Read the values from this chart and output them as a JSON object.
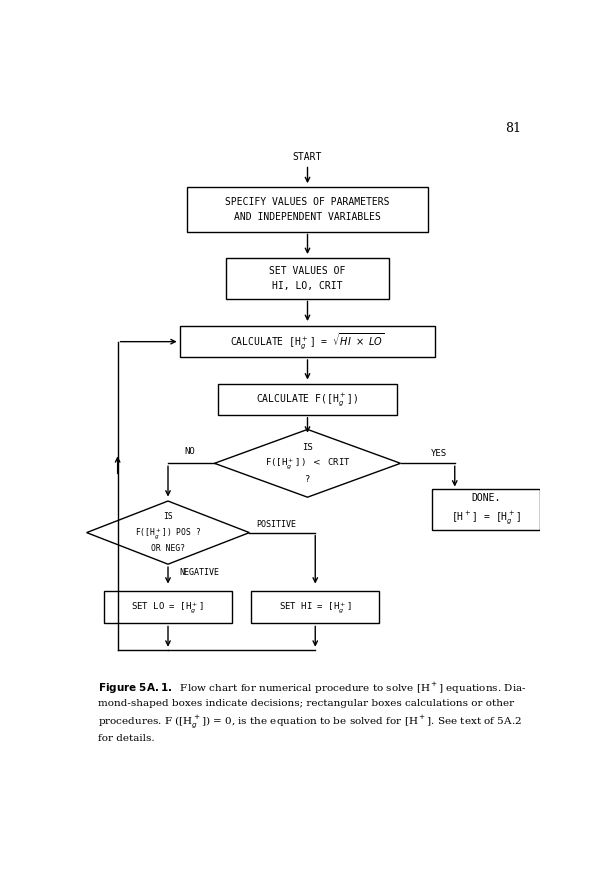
{
  "page_number": "81",
  "bg": "#ffffff",
  "lw": 1.0,
  "mono_fs": 7.0,
  "start_text": "START",
  "box1_text": "SPECIFY VALUES OF PARAMETERS\nAND INDEPENDENT VARIABLES",
  "box2_text": "SET VALUES OF\nHI, LO, CRIT",
  "box3_text": "CALCULATE [H_g^+] = sqrt(HI x LO)",
  "box4_text": "CALCULATE F([H_g^+])",
  "d1_line1": "IS",
  "d1_line2": "F([H_g^+]) < CRIT",
  "d1_line3": "?",
  "box5_line1": "DONE.",
  "box5_line2": "[H^+] = [H_g^+]",
  "d2_line1": "IS",
  "d2_line2": "F([H_g^+])  POS ?",
  "d2_line3": "OR NEG?",
  "box6_text": "SET LO = [H_g^+]",
  "box7_text": "SET HI = [H_g^+]",
  "no_label": "NO",
  "yes_label": "YES",
  "pos_label": "POSITIVE",
  "neg_label": "NEGATIVE",
  "caption_bold": "Figure 5A.1.",
  "caption_rest": "  Flow chart for numerical procedure to solve [H⁺] equations. Diamond-shaped boxes indicate decisions; rectangular boxes calculations or other procedures. F ([H⁺ₑ]) = 0, is the equation to be solved for [H⁺]. See text of 5A.2 for details."
}
